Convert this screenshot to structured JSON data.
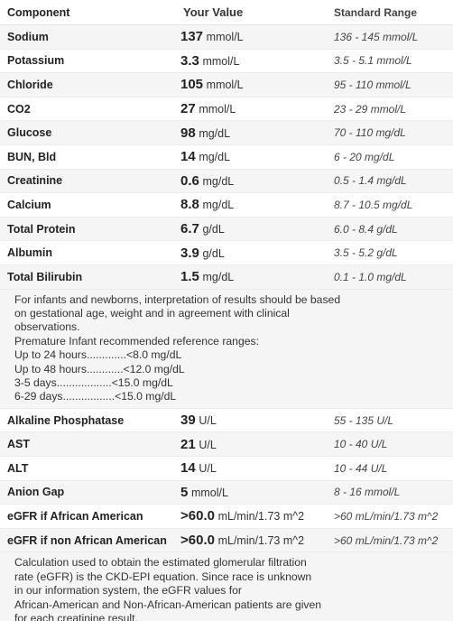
{
  "header": {
    "component": "Component",
    "your_value": "Your Value",
    "standard_range": "Standard Range"
  },
  "rows_group1": [
    {
      "name": "Sodium",
      "value": "137",
      "unit": "mmol/L",
      "range": "136 - 145 mmol/L"
    },
    {
      "name": "Potassium",
      "value": "3.3",
      "unit": "mmol/L",
      "range": "3.5 - 5.1 mmol/L"
    },
    {
      "name": "Chloride",
      "value": "105",
      "unit": "mmol/L",
      "range": "95 - 110 mmol/L"
    },
    {
      "name": "CO2",
      "value": "27",
      "unit": "mmol/L",
      "range": "23 - 29 mmol/L"
    },
    {
      "name": "Glucose",
      "value": "98",
      "unit": "mg/dL",
      "range": "70 - 110 mg/dL"
    },
    {
      "name": "BUN, Bld",
      "value": "14",
      "unit": "mg/dL",
      "range": "6 - 20 mg/dL"
    },
    {
      "name": "Creatinine",
      "value": "0.6",
      "unit": "mg/dL",
      "range": "0.5 - 1.4 mg/dL"
    },
    {
      "name": "Calcium",
      "value": "8.8",
      "unit": "mg/dL",
      "range": "8.7 - 10.5 mg/dL"
    },
    {
      "name": "Total Protein",
      "value": "6.7",
      "unit": "g/dL",
      "range": "6.0 - 8.4 g/dL"
    },
    {
      "name": "Albumin",
      "value": "3.9",
      "unit": "g/dL",
      "range": "3.5 - 5.2 g/dL"
    },
    {
      "name": "Total Bilirubin",
      "value": "1.5",
      "unit": "mg/dL",
      "range": "0.1 - 1.0 mg/dL"
    }
  ],
  "bilirubin_note": "For infants and newborns, interpretation of results should be based\non gestational age, weight and in agreement with clinical\nobservations.\nPremature Infant recommended reference ranges:\nUp to 24 hours.............<8.0 mg/dL\nUp to 48 hours............<12.0 mg/dL\n3-5 days..................<15.0 mg/dL\n6-29 days.................<15.0 mg/dL",
  "rows_group2": [
    {
      "name": "Alkaline Phosphatase",
      "value": "39",
      "unit": "U/L",
      "range": "55 - 135 U/L"
    },
    {
      "name": "AST",
      "value": "21",
      "unit": "U/L",
      "range": "10 - 40 U/L"
    },
    {
      "name": "ALT",
      "value": "14",
      "unit": "U/L",
      "range": "10 - 44 U/L"
    },
    {
      "name": "Anion Gap",
      "value": "5",
      "unit": "mmol/L",
      "range": "8 - 16 mmol/L"
    },
    {
      "name": "eGFR if African American",
      "value": ">60.0",
      "unit": "mL/min/1.73 m^2",
      "range": ">60 mL/min/1.73 m^2"
    },
    {
      "name": "eGFR if non African American",
      "value": ">60.0",
      "unit": "mL/min/1.73 m^2",
      "range": ">60 mL/min/1.73 m^2"
    }
  ],
  "egfr_note": "Calculation used to obtain the estimated glomerular filtration\nrate (eGFR) is the CKD-EPI equation. Since race is unknown\nin our information system, the eGFR values for\nAfrican-American and Non-African-American patients are given\nfor each creatinine result."
}
